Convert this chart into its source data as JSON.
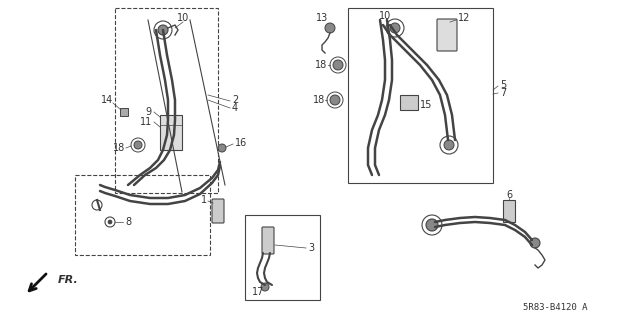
{
  "bg_color": "#ffffff",
  "line_color": "#444444",
  "text_color": "#333333",
  "part_number": "5R83-B4120 A",
  "figsize": [
    6.4,
    3.2
  ],
  "dpi": 100
}
